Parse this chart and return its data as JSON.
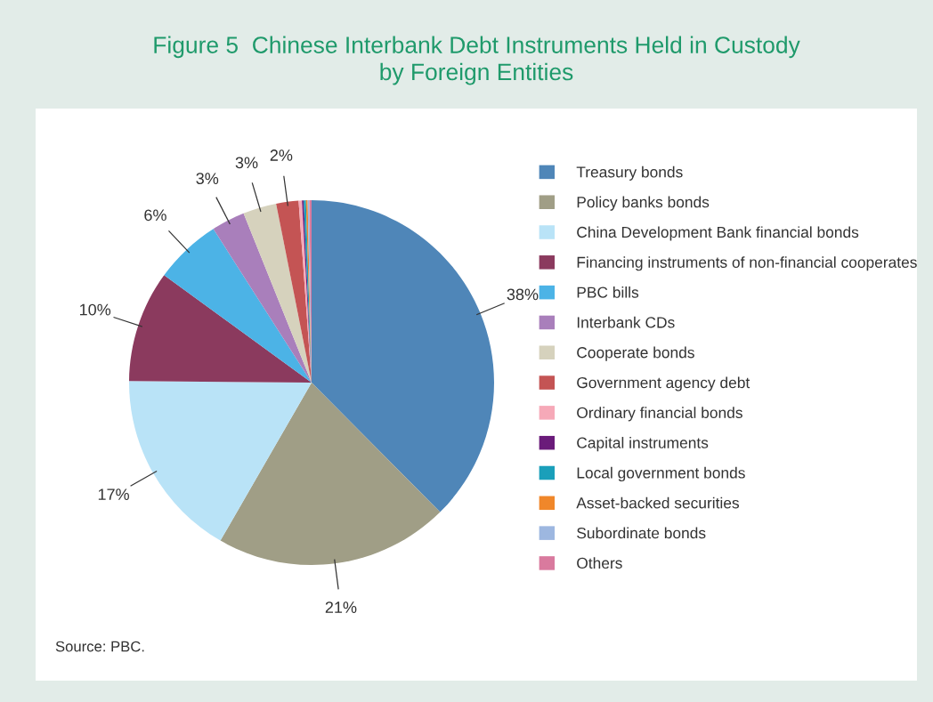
{
  "chart_data": {
    "type": "pie",
    "title": "Figure 5  Chinese Interbank Debt Instruments Held in Custody\nby Foreign Entities",
    "categories": [
      "Treasury bonds",
      "Policy banks bonds",
      "China Development Bank financial bonds",
      "Financing instruments of non-financial cooperates",
      "PBC bills",
      "Interbank CDs",
      "Cooperate bonds",
      "Government agency debt",
      "Ordinary financial bonds",
      "Capital instruments",
      "Local government bonds",
      "Asset-backed securities",
      "Subordinate bonds",
      "Others"
    ],
    "values": [
      38,
      21,
      17,
      10,
      6,
      3,
      3,
      2,
      0.3,
      0.15,
      0.2,
      0.15,
      0.15,
      0.2
    ],
    "value_labels": [
      "38%",
      "21%",
      "17%",
      "10%",
      "6%",
      "3%",
      "3%",
      "2%",
      null,
      null,
      null,
      null,
      null,
      null
    ],
    "colors": [
      "#4f86b8",
      "#a09e86",
      "#b9e3f7",
      "#8b3a5e",
      "#4cb3e6",
      "#a97fbb",
      "#d6d2bd",
      "#c45454",
      "#f6a9b8",
      "#6a1b7a",
      "#1a9fba",
      "#f0872a",
      "#9db7e0",
      "#d97a9e"
    ],
    "legend": "right",
    "annotations": [
      "Source: PBC."
    ]
  }
}
